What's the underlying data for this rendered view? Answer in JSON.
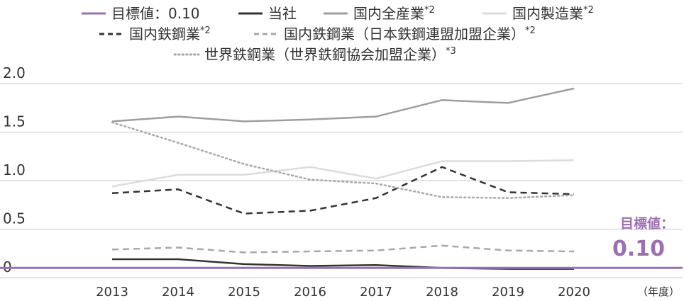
{
  "chart_data": {
    "type": "line",
    "x_unit_label": "（年度）",
    "categories": [
      "2013",
      "2014",
      "2015",
      "2016",
      "2017",
      "2018",
      "2019",
      "2020"
    ],
    "ylim": [
      0,
      2.0
    ],
    "y_ticks": [
      {
        "value": 0,
        "label": "0"
      },
      {
        "value": 0.5,
        "label": "0.5"
      },
      {
        "value": 1.0,
        "label": "1.0"
      },
      {
        "value": 1.5,
        "label": "1.5"
      },
      {
        "value": 2.0,
        "label": "2.0"
      }
    ],
    "grid": true,
    "legend_position": "top",
    "target": {
      "label": "目標値：",
      "value_label": "0.10",
      "value": 0.1,
      "color": "#9b6fb1"
    },
    "series": [
      {
        "name": "目標値：0.10",
        "sup": "",
        "color": "#9b6fb1",
        "dash": "solid",
        "values": [
          0.1,
          0.1,
          0.1,
          0.1,
          0.1,
          0.1,
          0.1,
          0.1
        ]
      },
      {
        "name": "当社",
        "sup": "",
        "color": "#333333",
        "dash": "solid",
        "values": [
          0.19,
          0.19,
          0.14,
          0.12,
          0.13,
          0.1,
          0.09,
          0.09
        ]
      },
      {
        "name": "国内全産業",
        "sup": "*2",
        "color": "#9e9e9e",
        "dash": "solid",
        "values": [
          1.61,
          1.66,
          1.61,
          1.63,
          1.66,
          1.83,
          1.8,
          1.95
        ]
      },
      {
        "name": "国内製造業",
        "sup": "*2",
        "color": "#dcdcdc",
        "dash": "solid",
        "values": [
          0.94,
          1.06,
          1.06,
          1.14,
          1.02,
          1.2,
          1.2,
          1.21
        ]
      },
      {
        "name": "国内鉄鋼業",
        "sup": "*2",
        "color": "#333333",
        "dash": "dashed",
        "values": [
          0.87,
          0.91,
          0.66,
          0.69,
          0.82,
          1.14,
          0.88,
          0.86
        ]
      },
      {
        "name": "国内鉄鋼業（日本鉄鋼連盟加盟企業）",
        "sup": "*2",
        "color": "#a8a8a8",
        "dash": "dashed",
        "values": [
          0.29,
          0.31,
          0.26,
          0.27,
          0.28,
          0.33,
          0.28,
          0.27
        ]
      },
      {
        "name": "世界鉄鋼業（世界鉄鋼協会加盟企業）",
        "sup": "*3",
        "color": "#a8a8a8",
        "dash": "dotted",
        "values": [
          1.6,
          1.39,
          1.17,
          1.01,
          0.97,
          0.83,
          0.82,
          0.85
        ]
      }
    ]
  }
}
